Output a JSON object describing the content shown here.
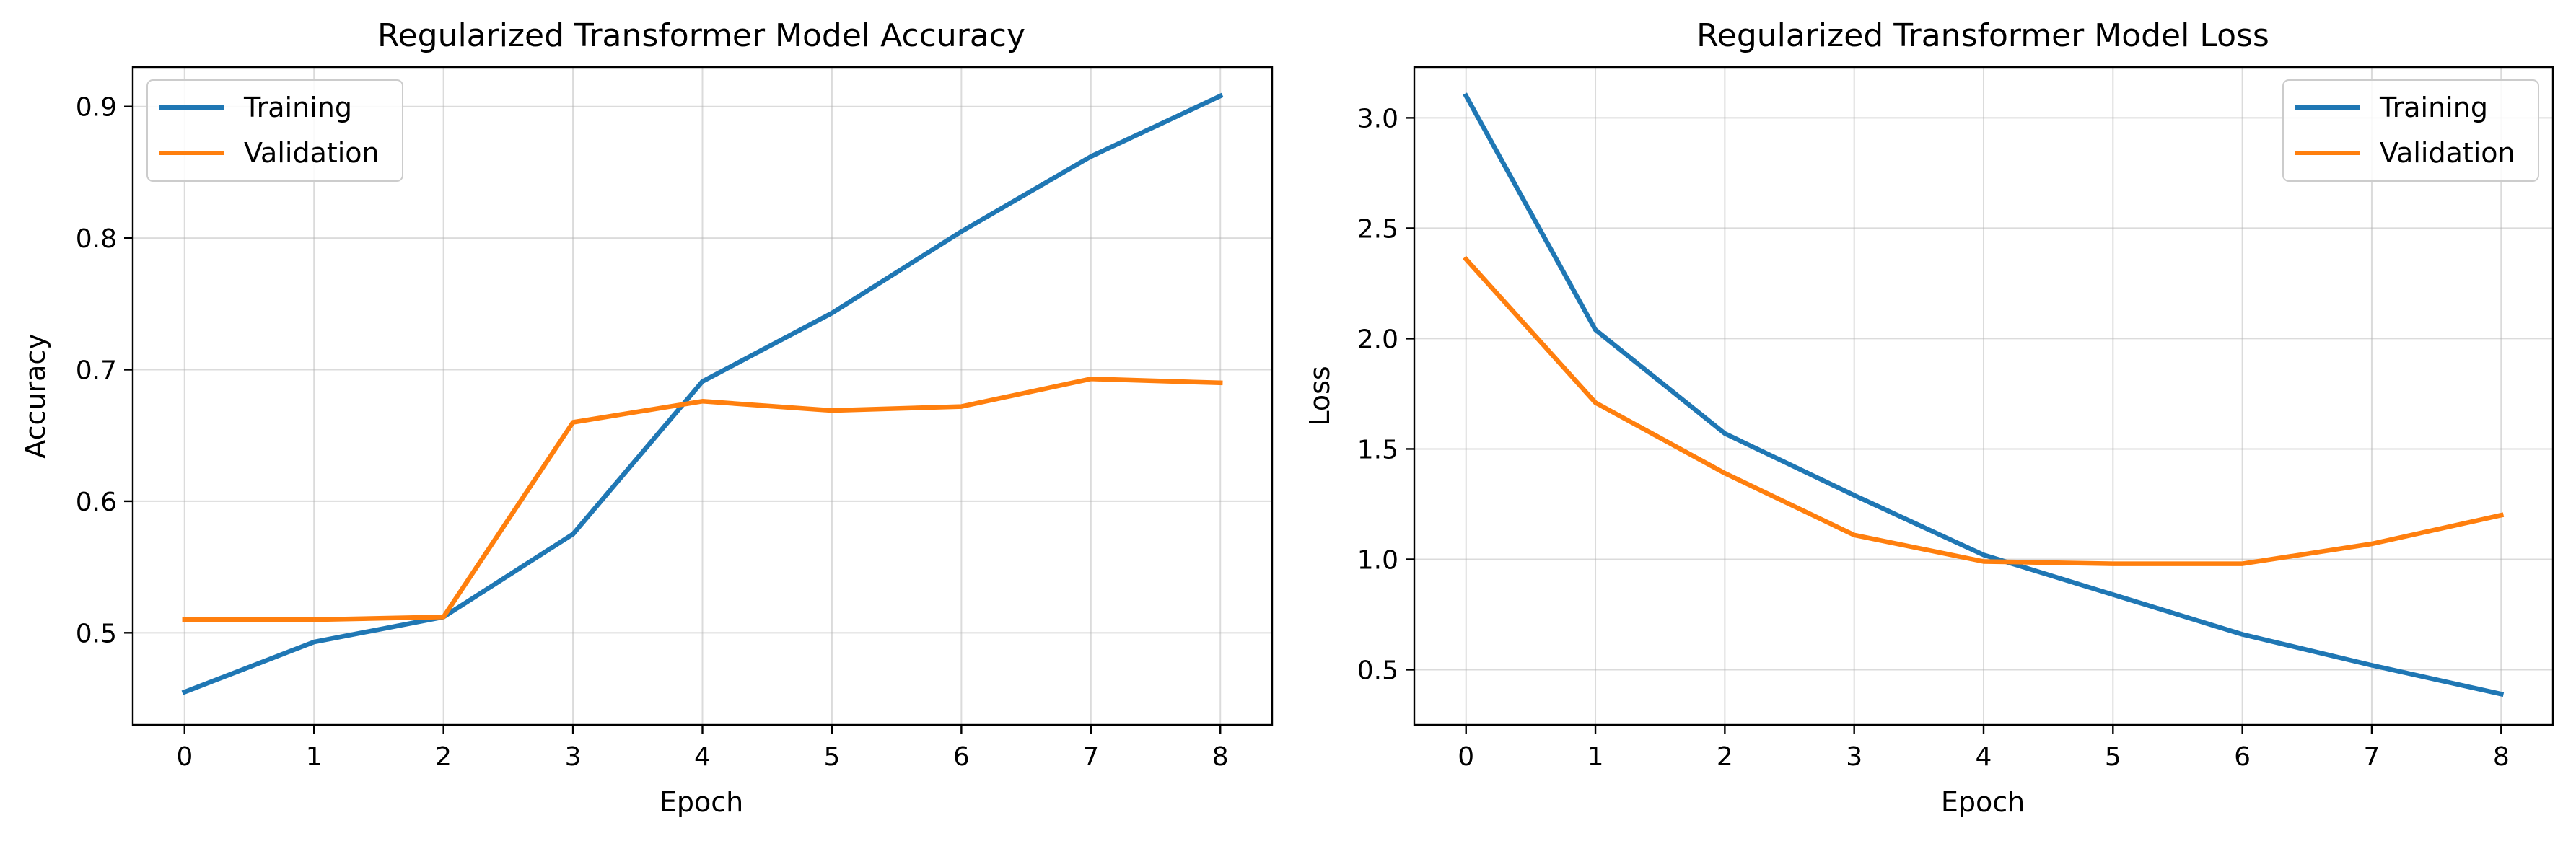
{
  "colors": {
    "training": "#1f77b4",
    "validation": "#ff7f0e",
    "grid": "#b0b0b0",
    "axes": "#000000"
  },
  "chart_data": [
    {
      "type": "line",
      "title": "Regularized Transformer Model Accuracy",
      "xlabel": "Epoch",
      "ylabel": "Accuracy",
      "x": [
        0,
        1,
        2,
        3,
        4,
        5,
        6,
        7,
        8
      ],
      "xlim": [
        -0.4,
        8.4
      ],
      "ylim": [
        0.43,
        0.93
      ],
      "xticks": [
        0,
        1,
        2,
        3,
        4,
        5,
        6,
        7,
        8
      ],
      "yticks": [
        0.5,
        0.6,
        0.7,
        0.8,
        0.9
      ],
      "ytick_labels": [
        "0.5",
        "0.6",
        "0.7",
        "0.8",
        "0.9"
      ],
      "grid": true,
      "legend_loc": "upper left",
      "series": [
        {
          "name": "Training",
          "color": "#1f77b4",
          "values": [
            0.455,
            0.493,
            0.512,
            0.575,
            0.691,
            0.743,
            0.805,
            0.862,
            0.908
          ]
        },
        {
          "name": "Validation",
          "color": "#ff7f0e",
          "values": [
            0.51,
            0.51,
            0.512,
            0.66,
            0.676,
            0.669,
            0.672,
            0.693,
            0.69
          ]
        }
      ]
    },
    {
      "type": "line",
      "title": "Regularized Transformer Model Loss",
      "xlabel": "Epoch",
      "ylabel": "Loss",
      "x": [
        0,
        1,
        2,
        3,
        4,
        5,
        6,
        7,
        8
      ],
      "xlim": [
        -0.4,
        8.4
      ],
      "ylim": [
        0.25,
        3.23
      ],
      "xticks": [
        0,
        1,
        2,
        3,
        4,
        5,
        6,
        7,
        8
      ],
      "yticks": [
        0.5,
        1.0,
        1.5,
        2.0,
        2.5,
        3.0
      ],
      "ytick_labels": [
        "0.5",
        "1.0",
        "1.5",
        "2.0",
        "2.5",
        "3.0"
      ],
      "grid": true,
      "legend_loc": "upper right",
      "series": [
        {
          "name": "Training",
          "color": "#1f77b4",
          "values": [
            3.1,
            2.04,
            1.57,
            1.29,
            1.02,
            0.84,
            0.66,
            0.52,
            0.39
          ]
        },
        {
          "name": "Validation",
          "color": "#ff7f0e",
          "values": [
            2.36,
            1.71,
            1.39,
            1.11,
            0.99,
            0.98,
            0.98,
            1.07,
            1.2
          ]
        }
      ]
    }
  ]
}
